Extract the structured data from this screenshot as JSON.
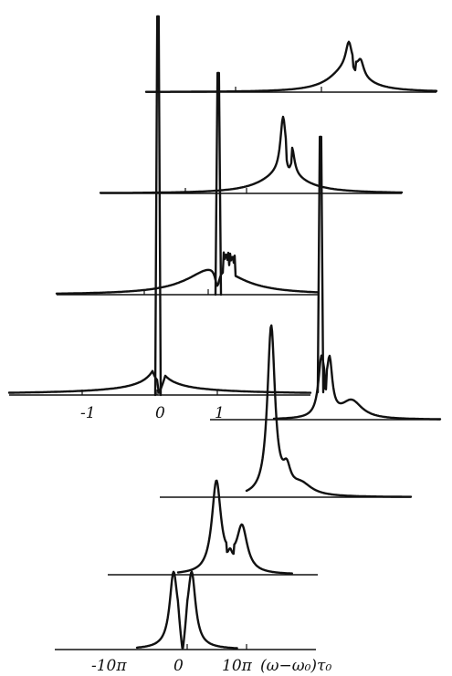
{
  "chart_data": [
    {
      "type": "line",
      "description_scale": "relative",
      "xticks": [
        "-1",
        "0",
        "1"
      ],
      "traces": [
        {
          "center": 0.0,
          "height": 1.0,
          "kind": "dispersive-dip"
        },
        {
          "center": 1.0,
          "height": 0.85,
          "kind": "dispersive-dip-comb"
        },
        {
          "center": 1.55,
          "height": 0.75,
          "kind": "dispersive"
        },
        {
          "center": 1.35,
          "height": 0.35,
          "kind": "doublet"
        }
      ]
    },
    {
      "type": "line",
      "xticks": [
        "-10π",
        "0",
        "10π"
      ],
      "xlabel": "(ω−ω0)τ0",
      "traces": [
        {
          "center": 20,
          "height": 0.95,
          "kind": "main-with-satellites"
        },
        {
          "center": 14,
          "height": 0.9,
          "kind": "main-with-shoulder"
        },
        {
          "center": 6,
          "height": 0.75,
          "kind": "triplet"
        },
        {
          "center": 0,
          "height": 0.65,
          "kind": "split-doublet"
        }
      ]
    }
  ],
  "labels": {
    "upper_ticks": [
      "-1",
      "0",
      "1"
    ],
    "lower_ticks": [
      "-10π",
      "0",
      "10π"
    ],
    "lower_axis_label": "(ω−ω₀)τ₀"
  }
}
